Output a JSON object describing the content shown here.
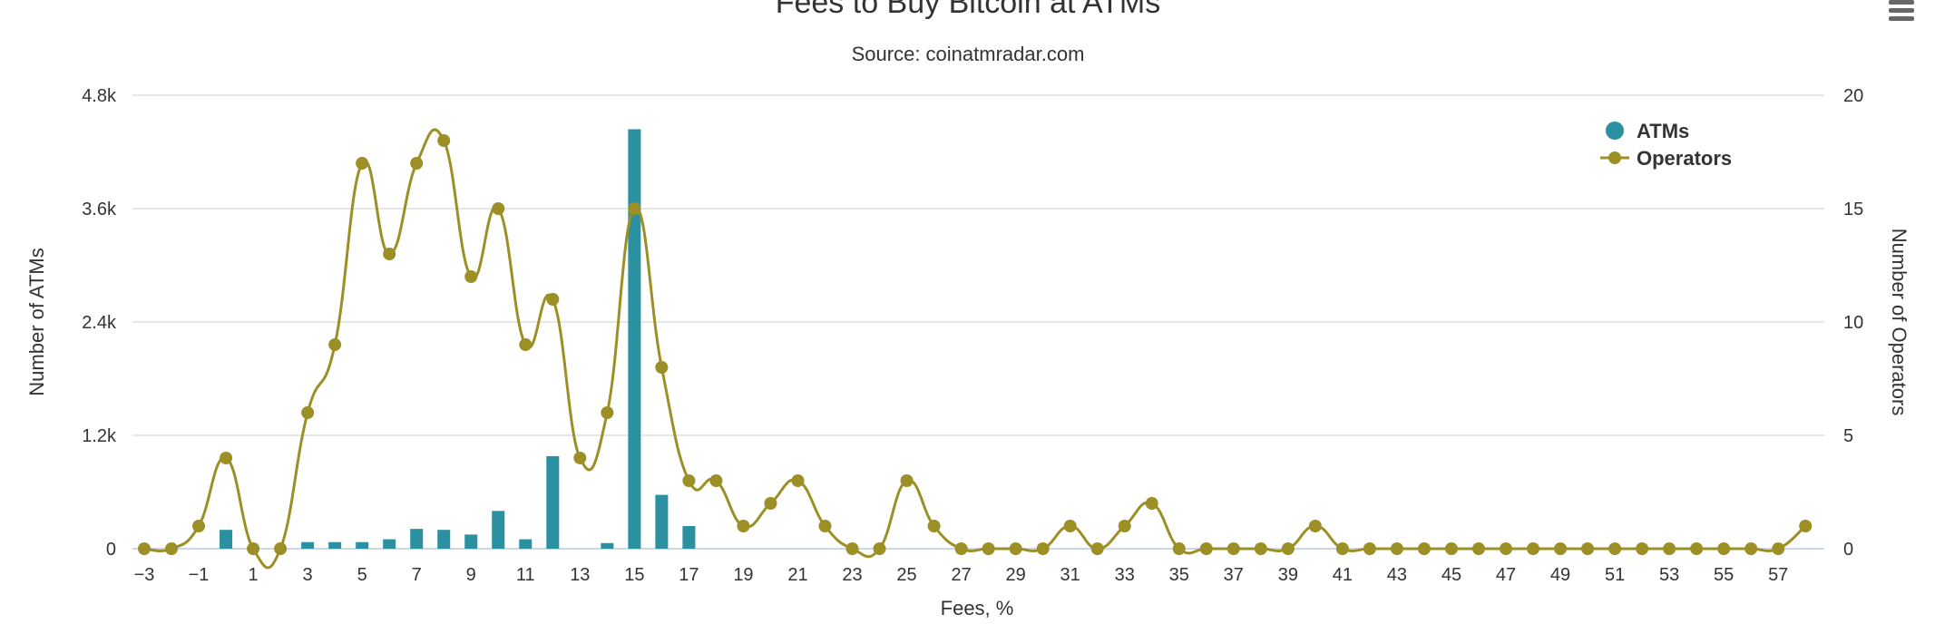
{
  "chart_data": {
    "type": "bar+line",
    "title": "Fees to Buy Bitcoin at ATMs",
    "subtitle": "Source: coinatmradar.com",
    "xlabel": "Fees, %",
    "ylabel_left": "Number of ATMs",
    "ylabel_right": "Number of Operators",
    "x": [
      -3,
      -2,
      -1,
      0,
      1,
      2,
      3,
      4,
      5,
      6,
      7,
      8,
      9,
      10,
      11,
      12,
      13,
      14,
      15,
      16,
      17,
      18,
      19,
      20,
      21,
      22,
      23,
      24,
      25,
      26,
      27,
      28,
      29,
      30,
      31,
      32,
      33,
      34,
      35,
      36,
      37,
      38,
      39,
      40,
      41,
      42,
      43,
      44,
      45,
      46,
      47,
      48,
      49,
      50,
      51,
      52,
      53,
      54,
      55,
      56,
      57,
      58
    ],
    "x_tick_labels": [
      "-3",
      "-1",
      "1",
      "3",
      "5",
      "7",
      "9",
      "11",
      "13",
      "15",
      "17",
      "19",
      "21",
      "23",
      "25",
      "27",
      "29",
      "31",
      "33",
      "35",
      "37",
      "39",
      "41",
      "43",
      "45",
      "47",
      "49",
      "51",
      "53",
      "55",
      "57"
    ],
    "y_left_ticks": [
      "0",
      "1.2k",
      "2.4k",
      "3.6k",
      "4.8k"
    ],
    "y_left_range": [
      0,
      4800
    ],
    "y_right_ticks": [
      "0",
      "5",
      "10",
      "15",
      "20"
    ],
    "y_right_range": [
      0,
      20
    ],
    "legend_position": "top-right",
    "grid": true,
    "series": [
      {
        "name": "ATMs",
        "type": "column",
        "axis": "left",
        "color": "#2b90a0",
        "values": [
          0,
          0,
          0,
          200,
          0,
          0,
          70,
          70,
          70,
          100,
          210,
          200,
          150,
          400,
          100,
          980,
          0,
          60,
          4440,
          570,
          240,
          0,
          0,
          0,
          0,
          0,
          0,
          0,
          0,
          0,
          0,
          0,
          0,
          0,
          0,
          0,
          0,
          0,
          0,
          0,
          0,
          0,
          0,
          0,
          0,
          0,
          0,
          0,
          0,
          0,
          0,
          0,
          0,
          0,
          0,
          0,
          0,
          0,
          0,
          0,
          0,
          0
        ]
      },
      {
        "name": "Operators",
        "type": "spline",
        "axis": "right",
        "color": "#9c8f25",
        "values": [
          0,
          0,
          1,
          4,
          0,
          0,
          6,
          9,
          17,
          13,
          17,
          18,
          12,
          15,
          9,
          11,
          4,
          6,
          15,
          8,
          3,
          3,
          1,
          2,
          3,
          1,
          0,
          0,
          3,
          1,
          0,
          0,
          0,
          0,
          1,
          0,
          1,
          2,
          0,
          0,
          0,
          0,
          0,
          1,
          0,
          0,
          0,
          0,
          0,
          0,
          0,
          0,
          0,
          0,
          0,
          0,
          0,
          0,
          0,
          0,
          0,
          1
        ]
      }
    ]
  },
  "menu_icon": "hamburger-menu-icon"
}
